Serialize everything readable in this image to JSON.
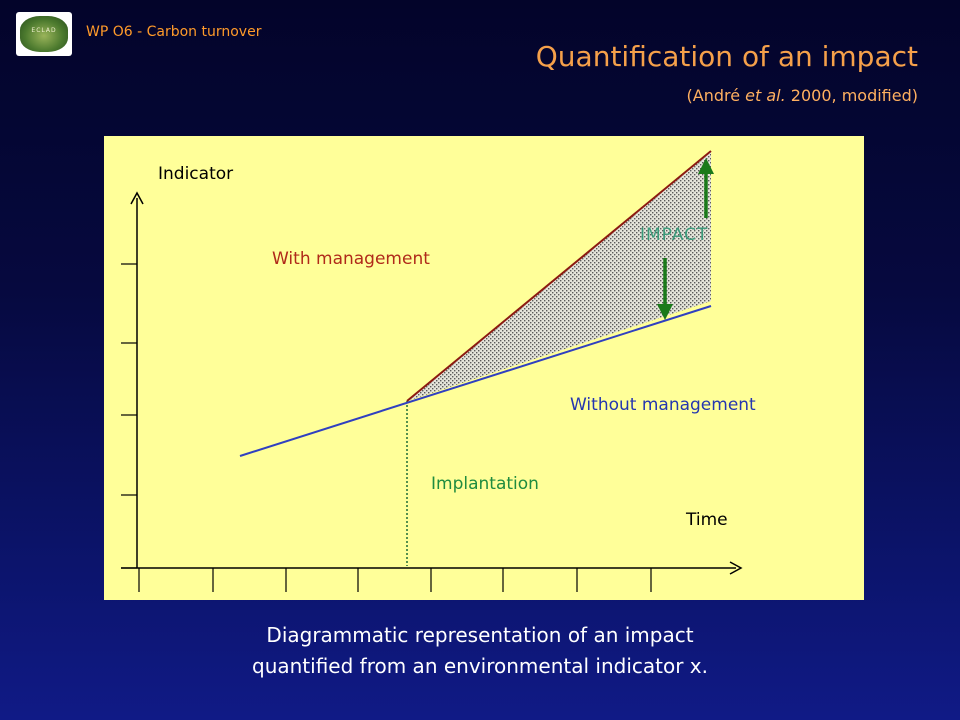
{
  "header": {
    "logo_text": "ECLAD",
    "section_label": "WP O6 - Carbon turnover",
    "title": "Quantification of an impact",
    "subtitle_prefix": "(André ",
    "subtitle_italic": "et al.",
    "subtitle_suffix": " 2000, modified)"
  },
  "diagram": {
    "y_axis_label": "Indicator",
    "x_axis_label": "Time",
    "with_management_label": "With management",
    "without_management_label": "Without management",
    "impact_label": "IMPACT",
    "implantation_label": "Implantation",
    "colors": {
      "panel_background": "#ffff99",
      "with_management_line": "#8b1a10",
      "without_management_line": "#3040c0",
      "impact_arrows": "#1a7a1a",
      "implantation_marker": "#1f6b35",
      "impact_fill": "stippled-gray"
    }
  },
  "caption": {
    "line1": "Diagrammatic representation of an impact",
    "line2": "quantified from an environmental indicator x."
  }
}
